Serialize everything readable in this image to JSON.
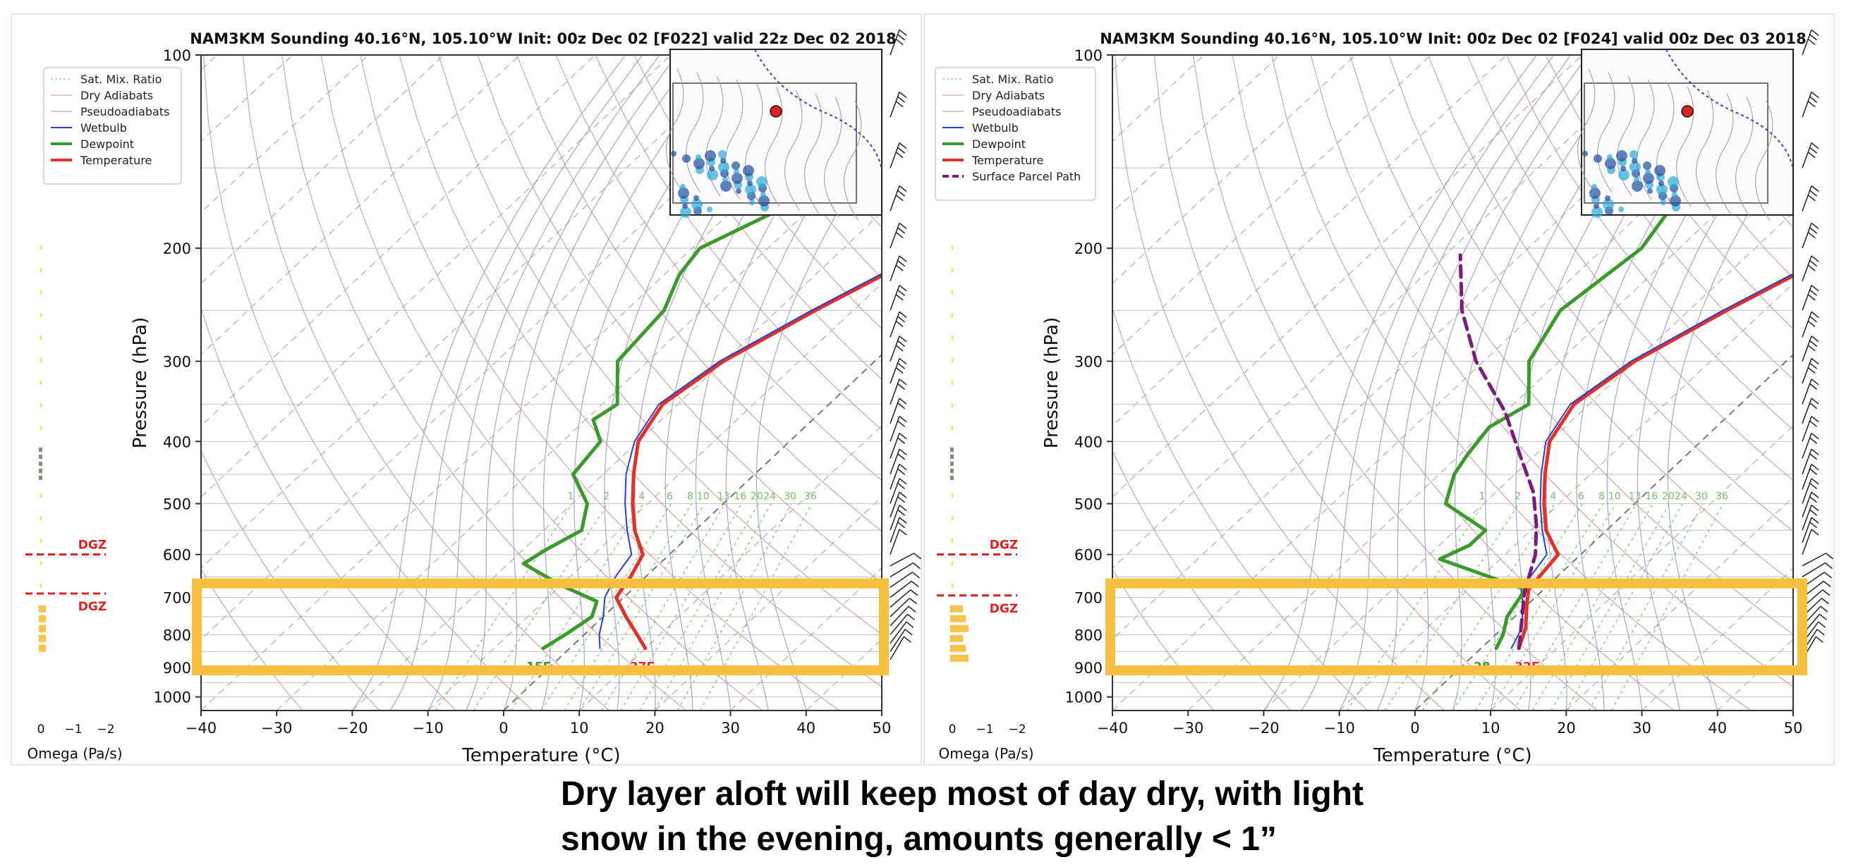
{
  "caption": {
    "line1": "Dry layer aloft will keep most of day dry, with light",
    "line2": "snow in the evening, amounts generally < 1”"
  },
  "colors": {
    "temperature": "#e03228",
    "dewpoint": "#3a9a2a",
    "wetbulb": "#2b3fd6",
    "parcel": "#7b1c7b",
    "dgz": "#e02020",
    "highlight": "#f6bf3f",
    "dry_adiabat": "#c89090",
    "pseudoadiabat": "#8f8fcf",
    "mixing_ratio": "#7dbf6d"
  },
  "chart_data": [
    {
      "type": "line",
      "subtype": "skew-T log-P sounding",
      "title": "NAM3KM Sounding 40.16°N, 105.10°W Init: 00z Dec 02 [F022] valid 22z Dec 02 2018",
      "xlabel": "Temperature (°C)",
      "ylabel": "Pressure (hPa)",
      "xlim": [
        -40,
        50
      ],
      "ylim": [
        1050,
        100
      ],
      "x_ticks": [
        "−40",
        "−30",
        "−20",
        "−10",
        "0",
        "10",
        "20",
        "30",
        "40",
        "50"
      ],
      "y_ticks": [
        100,
        200,
        300,
        400,
        500,
        600,
        700,
        800,
        900,
        1000
      ],
      "legend_position": "top-left",
      "legend": [
        "Sat. Mix. Ratio",
        "Dry Adiabats",
        "Pseudoadiabats",
        "Wetbulb",
        "Dewpoint",
        "Temperature"
      ],
      "mixing_ratio_labels": [
        "1",
        "2",
        "4",
        "6",
        "8",
        "10",
        "13",
        "16",
        "20",
        "24",
        "30",
        "36"
      ],
      "series": [
        {
          "name": "Temperature",
          "points": [
            [
              10,
              840
            ],
            [
              7,
              800
            ],
            [
              3,
              750
            ],
            [
              -1,
              700
            ],
            [
              -2,
              650
            ],
            [
              -3.5,
              600
            ],
            [
              -8,
              550
            ],
            [
              -12,
              500
            ],
            [
              -16,
              450
            ],
            [
              -20,
              400
            ],
            [
              -22,
              350
            ],
            [
              -20,
              300
            ],
            [
              -15,
              250
            ],
            [
              -8,
              200
            ],
            [
              2,
              150
            ],
            [
              12,
              100
            ]
          ]
        },
        {
          "name": "Wetbulb",
          "points": [
            [
              4,
              840
            ],
            [
              2,
              800
            ],
            [
              0,
              750
            ],
            [
              -2.5,
              700
            ],
            [
              -4,
              650
            ],
            [
              -5,
              600
            ],
            [
              -9,
              550
            ],
            [
              -13,
              500
            ],
            [
              -17,
              450
            ],
            [
              -20.5,
              400
            ],
            [
              -22.5,
              350
            ],
            [
              -20.5,
              300
            ],
            [
              -15.5,
              250
            ],
            [
              -8.5,
              200
            ],
            [
              1.5,
              150
            ],
            [
              11.5,
              100
            ]
          ]
        },
        {
          "name": "Dewpoint",
          "points": [
            [
              -3.5,
              840
            ],
            [
              -2.5,
              800
            ],
            [
              -1.5,
              750
            ],
            [
              -3,
              710
            ],
            [
              -10,
              670
            ],
            [
              -18,
              620
            ],
            [
              -17,
              590
            ],
            [
              -15,
              550
            ],
            [
              -18,
              500
            ],
            [
              -24,
              450
            ],
            [
              -25,
              400
            ],
            [
              -29,
              370
            ],
            [
              -28,
              350
            ],
            [
              -34,
              300
            ],
            [
              -35,
              250
            ],
            [
              -38,
              220
            ],
            [
              -39,
              200
            ],
            [
              -33,
              170
            ],
            [
              -25,
              140
            ],
            [
              -16,
              120
            ],
            [
              -11,
              100
            ]
          ]
        }
      ],
      "surface_labels": {
        "temperature": "37F",
        "dewpoint": "15F"
      },
      "dgz": {
        "label": "DGZ",
        "levels_hpa": [
          600,
          690
        ]
      },
      "omega": {
        "xlabel": "Omega (Pa/s)",
        "x_ticks": [
          "0",
          "−1",
          "−2"
        ]
      },
      "highlight_box": [
        700,
        900
      ]
    },
    {
      "type": "line",
      "subtype": "skew-T log-P sounding",
      "title": "NAM3KM Sounding 40.16°N, 105.10°W Init: 00z Dec 02 [F024] valid 00z Dec 03 2018",
      "xlabel": "Temperature (°C)",
      "ylabel": "Pressure (hPa)",
      "xlim": [
        -40,
        50
      ],
      "ylim": [
        1050,
        100
      ],
      "x_ticks": [
        "−40",
        "−30",
        "−20",
        "−10",
        "0",
        "10",
        "20",
        "30",
        "40",
        "50"
      ],
      "y_ticks": [
        100,
        200,
        300,
        400,
        500,
        600,
        700,
        800,
        900,
        1000
      ],
      "legend_position": "top-left",
      "legend": [
        "Sat. Mix. Ratio",
        "Dry Adiabats",
        "Pseudoadiabats",
        "Wetbulb",
        "Dewpoint",
        "Temperature",
        "Surface Parcel Path"
      ],
      "mixing_ratio_labels": [
        "1",
        "2",
        "4",
        "6",
        "8",
        "10",
        "13",
        "16",
        "20",
        "24",
        "30",
        "36"
      ],
      "series": [
        {
          "name": "Temperature",
          "points": [
            [
              5,
              840
            ],
            [
              3,
              780
            ],
            [
              0,
              720
            ],
            [
              -2,
              680
            ],
            [
              -3,
              600
            ],
            [
              -8,
              550
            ],
            [
              -12,
              500
            ],
            [
              -16,
              450
            ],
            [
              -20,
              400
            ],
            [
              -22,
              350
            ],
            [
              -20,
              300
            ],
            [
              -15,
              250
            ],
            [
              -8,
              200
            ],
            [
              2,
              150
            ],
            [
              12,
              100
            ]
          ]
        },
        {
          "name": "Wetbulb",
          "points": [
            [
              4,
              840
            ],
            [
              2.5,
              780
            ],
            [
              -0.5,
              720
            ],
            [
              -3,
              680
            ],
            [
              -4.5,
              600
            ],
            [
              -8.5,
              550
            ],
            [
              -12.5,
              500
            ],
            [
              -16.5,
              450
            ],
            [
              -20.5,
              400
            ],
            [
              -22.5,
              350
            ],
            [
              -20.5,
              300
            ],
            [
              -15.5,
              250
            ],
            [
              -8.5,
              200
            ],
            [
              1.5,
              150
            ],
            [
              11.5,
              100
            ]
          ]
        },
        {
          "name": "Dewpoint",
          "points": [
            [
              2,
              840
            ],
            [
              1,
              800
            ],
            [
              -1,
              750
            ],
            [
              -2,
              700
            ],
            [
              -2.5,
              680
            ],
            [
              -18,
              610
            ],
            [
              -16,
              580
            ],
            [
              -16,
              550
            ],
            [
              -25,
              500
            ],
            [
              -28,
              450
            ],
            [
              -29,
              420
            ],
            [
              -30,
              380
            ],
            [
              -28,
              350
            ],
            [
              -34,
              300
            ],
            [
              -37,
              250
            ],
            [
              -35,
              200
            ],
            [
              -37,
              170
            ],
            [
              -32,
              140
            ],
            [
              -24,
              120
            ],
            [
              -17,
              100
            ]
          ]
        },
        {
          "name": "Surface Parcel Path",
          "points": [
            [
              5,
              840
            ],
            [
              1,
              750
            ],
            [
              -2,
              690
            ],
            [
              -6,
              600
            ],
            [
              -10,
              540
            ],
            [
              -15,
              480
            ],
            [
              -22,
              420
            ],
            [
              -30,
              360
            ],
            [
              -41,
              300
            ],
            [
              -50,
              250
            ],
            [
              -58,
              205
            ]
          ]
        }
      ],
      "surface_labels": {
        "temperature": "32F",
        "dewpoint": "28"
      },
      "dgz": {
        "label": "DGZ",
        "levels_hpa": [
          600,
          695
        ]
      },
      "omega": {
        "xlabel": "Omega (Pa/s)",
        "x_ticks": [
          "0",
          "−1",
          "−2"
        ]
      },
      "highlight_box": [
        700,
        900
      ]
    }
  ]
}
